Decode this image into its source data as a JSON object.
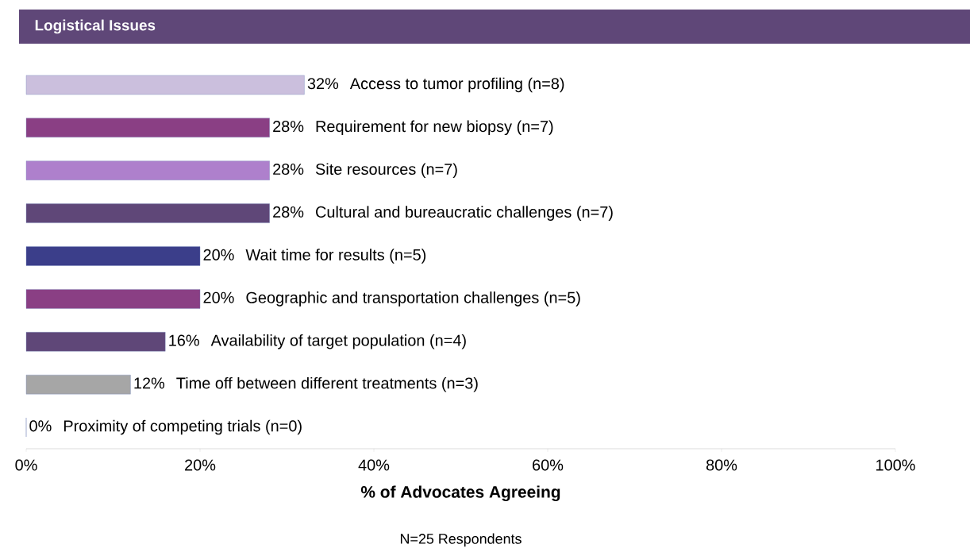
{
  "chart_data": {
    "type": "bar",
    "orientation": "horizontal",
    "title": "Logistical Issues",
    "categories": [
      "Access to tumor profiling (n=8)",
      "Requirement for new biopsy (n=7)",
      "Site resources (n=7)",
      "Cultural and bureaucratic challenges (n=7)",
      "Wait time for results (n=5)",
      "Geographic and transportation challenges (n=5)",
      "Availability of target population (n=4)",
      "Time off between different treatments (n=3)",
      "Proximity of competing trials (n=0)"
    ],
    "values": [
      32,
      28,
      28,
      28,
      20,
      20,
      16,
      12,
      0
    ],
    "value_labels": [
      "32%",
      "28%",
      "28%",
      "28%",
      "20%",
      "20%",
      "16%",
      "12%",
      "0%"
    ],
    "colors": [
      "#cbbfdd",
      "#8a3f84",
      "#ae80cc",
      "#5f4778",
      "#3b3e8a",
      "#8a3f84",
      "#5f4778",
      "#a6a6a6",
      "#a6a6a6"
    ],
    "xlim": [
      0,
      100
    ],
    "xticks": [
      {
        "value": 0,
        "label": "0%"
      },
      {
        "value": 20,
        "label": "20%"
      },
      {
        "value": 40,
        "label": "40%"
      },
      {
        "value": 60,
        "label": "60%"
      },
      {
        "value": 80,
        "label": "80%"
      },
      {
        "value": 100,
        "label": "100%"
      }
    ],
    "xlabel": "% of Advocates Agreeing",
    "annotations": [
      "N=25 Respondents"
    ],
    "grid": false
  }
}
